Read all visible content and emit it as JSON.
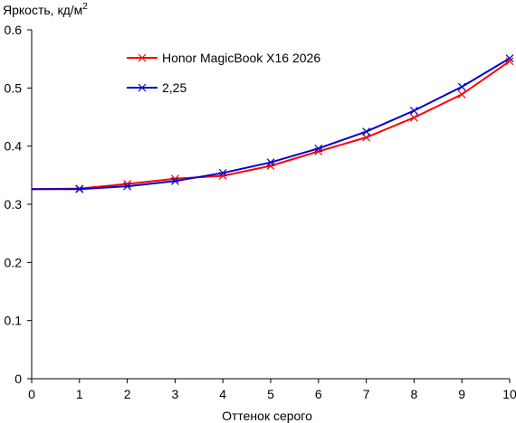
{
  "chart_data": {
    "type": "line",
    "title": "",
    "ylabel": "Яркость, кд/м",
    "ylabel_superscript": "2",
    "xlabel": "Оттенок серого",
    "x": [
      0,
      1,
      2,
      3,
      4,
      5,
      6,
      7,
      8,
      9,
      10
    ],
    "xlim": [
      0,
      10
    ],
    "ylim": [
      0,
      0.6
    ],
    "xticks": [
      0,
      1,
      2,
      3,
      4,
      5,
      6,
      7,
      8,
      9,
      10
    ],
    "xtick_labels": [
      "0",
      "1",
      "2",
      "3",
      "4",
      "5",
      "6",
      "7",
      "8",
      "9",
      "10"
    ],
    "yticks": [
      0,
      0.1,
      0.2,
      0.3,
      0.4,
      0.5,
      0.6
    ],
    "ytick_labels": [
      "0",
      "0.1",
      "0.2",
      "0.3",
      "0.4",
      "0.5",
      "0.6"
    ],
    "grid": false,
    "legend_position": "top-center",
    "series": [
      {
        "name": "Honor MagicBook X16 2026",
        "color": "#ff0000",
        "marker": "x",
        "x": [
          0,
          1,
          2,
          3,
          4,
          5,
          6,
          7,
          8,
          9,
          10
        ],
        "values": [
          0.326,
          0.327,
          0.335,
          0.344,
          0.349,
          0.366,
          0.391,
          0.415,
          0.449,
          0.489,
          0.546
        ]
      },
      {
        "name": "2,25",
        "color": "#0000cc",
        "marker": "x",
        "x": [
          0,
          1,
          2,
          3,
          4,
          5,
          6,
          7,
          8,
          9,
          10
        ],
        "values": [
          0.326,
          0.326,
          0.331,
          0.34,
          0.354,
          0.372,
          0.396,
          0.425,
          0.461,
          0.502,
          0.551
        ]
      }
    ]
  }
}
